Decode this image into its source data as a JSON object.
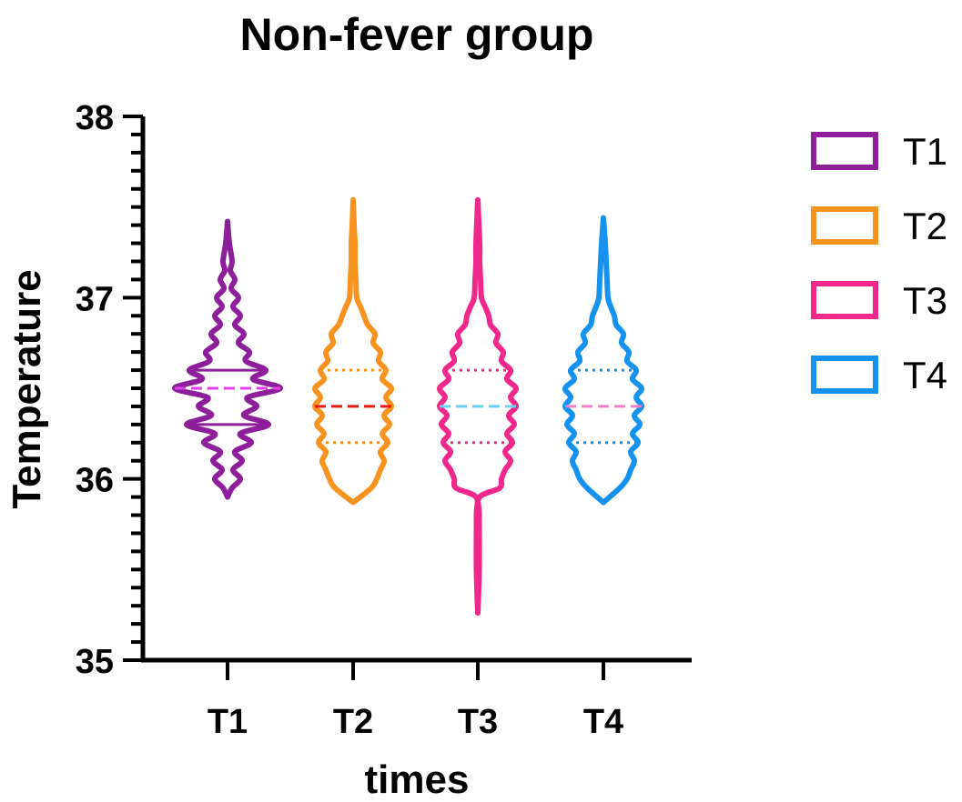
{
  "chart_data": {
    "type": "violin",
    "title": "Non-fever group",
    "xlabel": "times",
    "ylabel": "Temperature",
    "ylim": [
      35,
      38
    ],
    "y_ticks": [
      35,
      36,
      37,
      38
    ],
    "y_minor_step": 0.1,
    "categories": [
      "T1",
      "T2",
      "T3",
      "T4"
    ],
    "legend": {
      "placement": "right",
      "entries": [
        "T1",
        "T2",
        "T3",
        "T4"
      ]
    },
    "series": [
      {
        "name": "T1",
        "color": "#8E1F9A",
        "median_color": "#E040E8",
        "quartile_style": "solid",
        "min": 35.9,
        "max": 37.42,
        "q1": 36.3,
        "median": 36.5,
        "q3": 36.6,
        "density": [
          [
            35.9,
            0.0
          ],
          [
            35.95,
            0.05
          ],
          [
            36.0,
            0.14
          ],
          [
            36.05,
            0.06
          ],
          [
            36.1,
            0.16
          ],
          [
            36.15,
            0.08
          ],
          [
            36.2,
            0.26
          ],
          [
            36.25,
            0.14
          ],
          [
            36.3,
            0.45
          ],
          [
            36.35,
            0.18
          ],
          [
            36.4,
            0.32
          ],
          [
            36.45,
            0.22
          ],
          [
            36.5,
            0.58
          ],
          [
            36.55,
            0.28
          ],
          [
            36.6,
            0.42
          ],
          [
            36.65,
            0.2
          ],
          [
            36.7,
            0.24
          ],
          [
            36.75,
            0.12
          ],
          [
            36.8,
            0.18
          ],
          [
            36.85,
            0.08
          ],
          [
            36.9,
            0.14
          ],
          [
            36.95,
            0.06
          ],
          [
            37.0,
            0.12
          ],
          [
            37.05,
            0.04
          ],
          [
            37.1,
            0.08
          ],
          [
            37.15,
            0.03
          ],
          [
            37.2,
            0.05
          ],
          [
            37.3,
            0.02
          ],
          [
            37.42,
            0.0
          ]
        ]
      },
      {
        "name": "T2",
        "color": "#F7931E",
        "median_color": "#E8190F",
        "quartile_style": "dotted",
        "min": 35.87,
        "max": 37.54,
        "q1": 36.2,
        "median": 36.4,
        "q3": 36.6,
        "density": [
          [
            35.87,
            0.0
          ],
          [
            35.95,
            0.2
          ],
          [
            36.0,
            0.26
          ],
          [
            36.05,
            0.3
          ],
          [
            36.1,
            0.34
          ],
          [
            36.15,
            0.3
          ],
          [
            36.2,
            0.38
          ],
          [
            36.25,
            0.32
          ],
          [
            36.3,
            0.4
          ],
          [
            36.35,
            0.34
          ],
          [
            36.4,
            0.42
          ],
          [
            36.45,
            0.36
          ],
          [
            36.5,
            0.42
          ],
          [
            36.55,
            0.32
          ],
          [
            36.6,
            0.36
          ],
          [
            36.65,
            0.28
          ],
          [
            36.7,
            0.3
          ],
          [
            36.75,
            0.22
          ],
          [
            36.8,
            0.24
          ],
          [
            36.85,
            0.16
          ],
          [
            36.9,
            0.12
          ],
          [
            36.95,
            0.08
          ],
          [
            37.0,
            0.04
          ],
          [
            37.1,
            0.03
          ],
          [
            37.2,
            0.02
          ],
          [
            37.3,
            0.02
          ],
          [
            37.4,
            0.01
          ],
          [
            37.54,
            0.0
          ]
        ]
      },
      {
        "name": "T3",
        "color": "#F0288C",
        "median_color": "#6AD0F0",
        "quartile_style": "dotted",
        "min": 35.26,
        "max": 37.54,
        "q1": 36.2,
        "median": 36.4,
        "q3": 36.6,
        "density": [
          [
            35.26,
            0.0
          ],
          [
            35.5,
            0.015
          ],
          [
            35.8,
            0.015
          ],
          [
            35.9,
            0.02
          ],
          [
            35.95,
            0.24
          ],
          [
            36.0,
            0.26
          ],
          [
            36.05,
            0.3
          ],
          [
            36.1,
            0.36
          ],
          [
            36.15,
            0.3
          ],
          [
            36.2,
            0.38
          ],
          [
            36.25,
            0.32
          ],
          [
            36.3,
            0.4
          ],
          [
            36.35,
            0.34
          ],
          [
            36.4,
            0.42
          ],
          [
            36.45,
            0.36
          ],
          [
            36.5,
            0.42
          ],
          [
            36.55,
            0.32
          ],
          [
            36.6,
            0.36
          ],
          [
            36.65,
            0.26
          ],
          [
            36.7,
            0.28
          ],
          [
            36.75,
            0.2
          ],
          [
            36.8,
            0.22
          ],
          [
            36.85,
            0.14
          ],
          [
            36.9,
            0.12
          ],
          [
            36.95,
            0.08
          ],
          [
            37.0,
            0.04
          ],
          [
            37.1,
            0.03
          ],
          [
            37.2,
            0.02
          ],
          [
            37.3,
            0.02
          ],
          [
            37.54,
            0.0
          ]
        ]
      },
      {
        "name": "T4",
        "color": "#1592F0",
        "median_color": "#F080C8",
        "quartile_style": "dotted",
        "min": 35.87,
        "max": 37.44,
        "q1": 36.2,
        "median": 36.4,
        "q3": 36.6,
        "density": [
          [
            35.87,
            0.0
          ],
          [
            35.95,
            0.18
          ],
          [
            36.0,
            0.26
          ],
          [
            36.05,
            0.3
          ],
          [
            36.1,
            0.34
          ],
          [
            36.15,
            0.3
          ],
          [
            36.2,
            0.38
          ],
          [
            36.25,
            0.32
          ],
          [
            36.3,
            0.4
          ],
          [
            36.35,
            0.34
          ],
          [
            36.4,
            0.42
          ],
          [
            36.45,
            0.36
          ],
          [
            36.5,
            0.42
          ],
          [
            36.55,
            0.32
          ],
          [
            36.6,
            0.36
          ],
          [
            36.65,
            0.26
          ],
          [
            36.7,
            0.28
          ],
          [
            36.75,
            0.2
          ],
          [
            36.8,
            0.22
          ],
          [
            36.85,
            0.14
          ],
          [
            36.9,
            0.12
          ],
          [
            36.95,
            0.08
          ],
          [
            37.0,
            0.05
          ],
          [
            37.1,
            0.04
          ],
          [
            37.2,
            0.03
          ],
          [
            37.3,
            0.02
          ],
          [
            37.44,
            0.0
          ]
        ]
      }
    ]
  }
}
